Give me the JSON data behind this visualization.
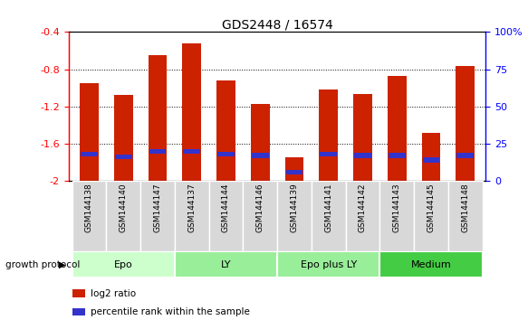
{
  "title": "GDS2448 / 16574",
  "samples": [
    "GSM144138",
    "GSM144140",
    "GSM144147",
    "GSM144137",
    "GSM144144",
    "GSM144146",
    "GSM144139",
    "GSM144141",
    "GSM144142",
    "GSM144143",
    "GSM144145",
    "GSM144148"
  ],
  "log2_ratio": [
    -0.95,
    -1.08,
    -0.65,
    -0.52,
    -0.92,
    -1.17,
    -1.75,
    -1.02,
    -1.07,
    -0.87,
    -1.48,
    -0.77
  ],
  "percentile_rank": [
    18,
    16,
    20,
    20,
    18,
    17,
    6,
    18,
    17,
    17,
    14,
    17
  ],
  "bar_color": "#cc2200",
  "blue_color": "#3333cc",
  "ylim_left": [
    -2.0,
    -0.4
  ],
  "ylim_right": [
    0,
    100
  ],
  "yticks_left": [
    -2.0,
    -1.6,
    -1.2,
    -0.8,
    -0.4
  ],
  "yticks_right": [
    0,
    25,
    50,
    75,
    100
  ],
  "ytick_labels_left": [
    "-2",
    "-1.6",
    "-1.2",
    "-0.8",
    "-0.4"
  ],
  "ytick_labels_right": [
    "0",
    "25",
    "50",
    "75",
    "100%"
  ],
  "groups": [
    {
      "name": "Epo",
      "start": 0,
      "end": 3,
      "color": "#ccffcc"
    },
    {
      "name": "LY",
      "start": 3,
      "end": 6,
      "color": "#99ee99"
    },
    {
      "name": "Epo plus LY",
      "start": 6,
      "end": 9,
      "color": "#99ee99"
    },
    {
      "name": "Medium",
      "start": 9,
      "end": 12,
      "color": "#44cc44"
    }
  ],
  "group_label": "growth protocol",
  "legend_log2": "log2 ratio",
  "legend_pct": "percentile rank within the sample",
  "bar_width": 0.55,
  "figsize": [
    5.83,
    3.54
  ],
  "dpi": 100
}
